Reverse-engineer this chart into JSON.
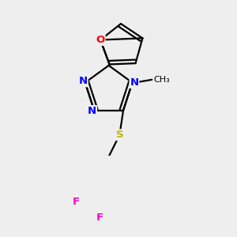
{
  "bg_color": "#eeeeee",
  "bond_color": "#000000",
  "bond_width": 1.6,
  "dbo": 0.055,
  "atom_colors": {
    "N": "#0000ff",
    "O": "#ff0000",
    "S": "#bbbb00",
    "F": "#ff00cc",
    "C": "#000000"
  },
  "fs": 9.5
}
